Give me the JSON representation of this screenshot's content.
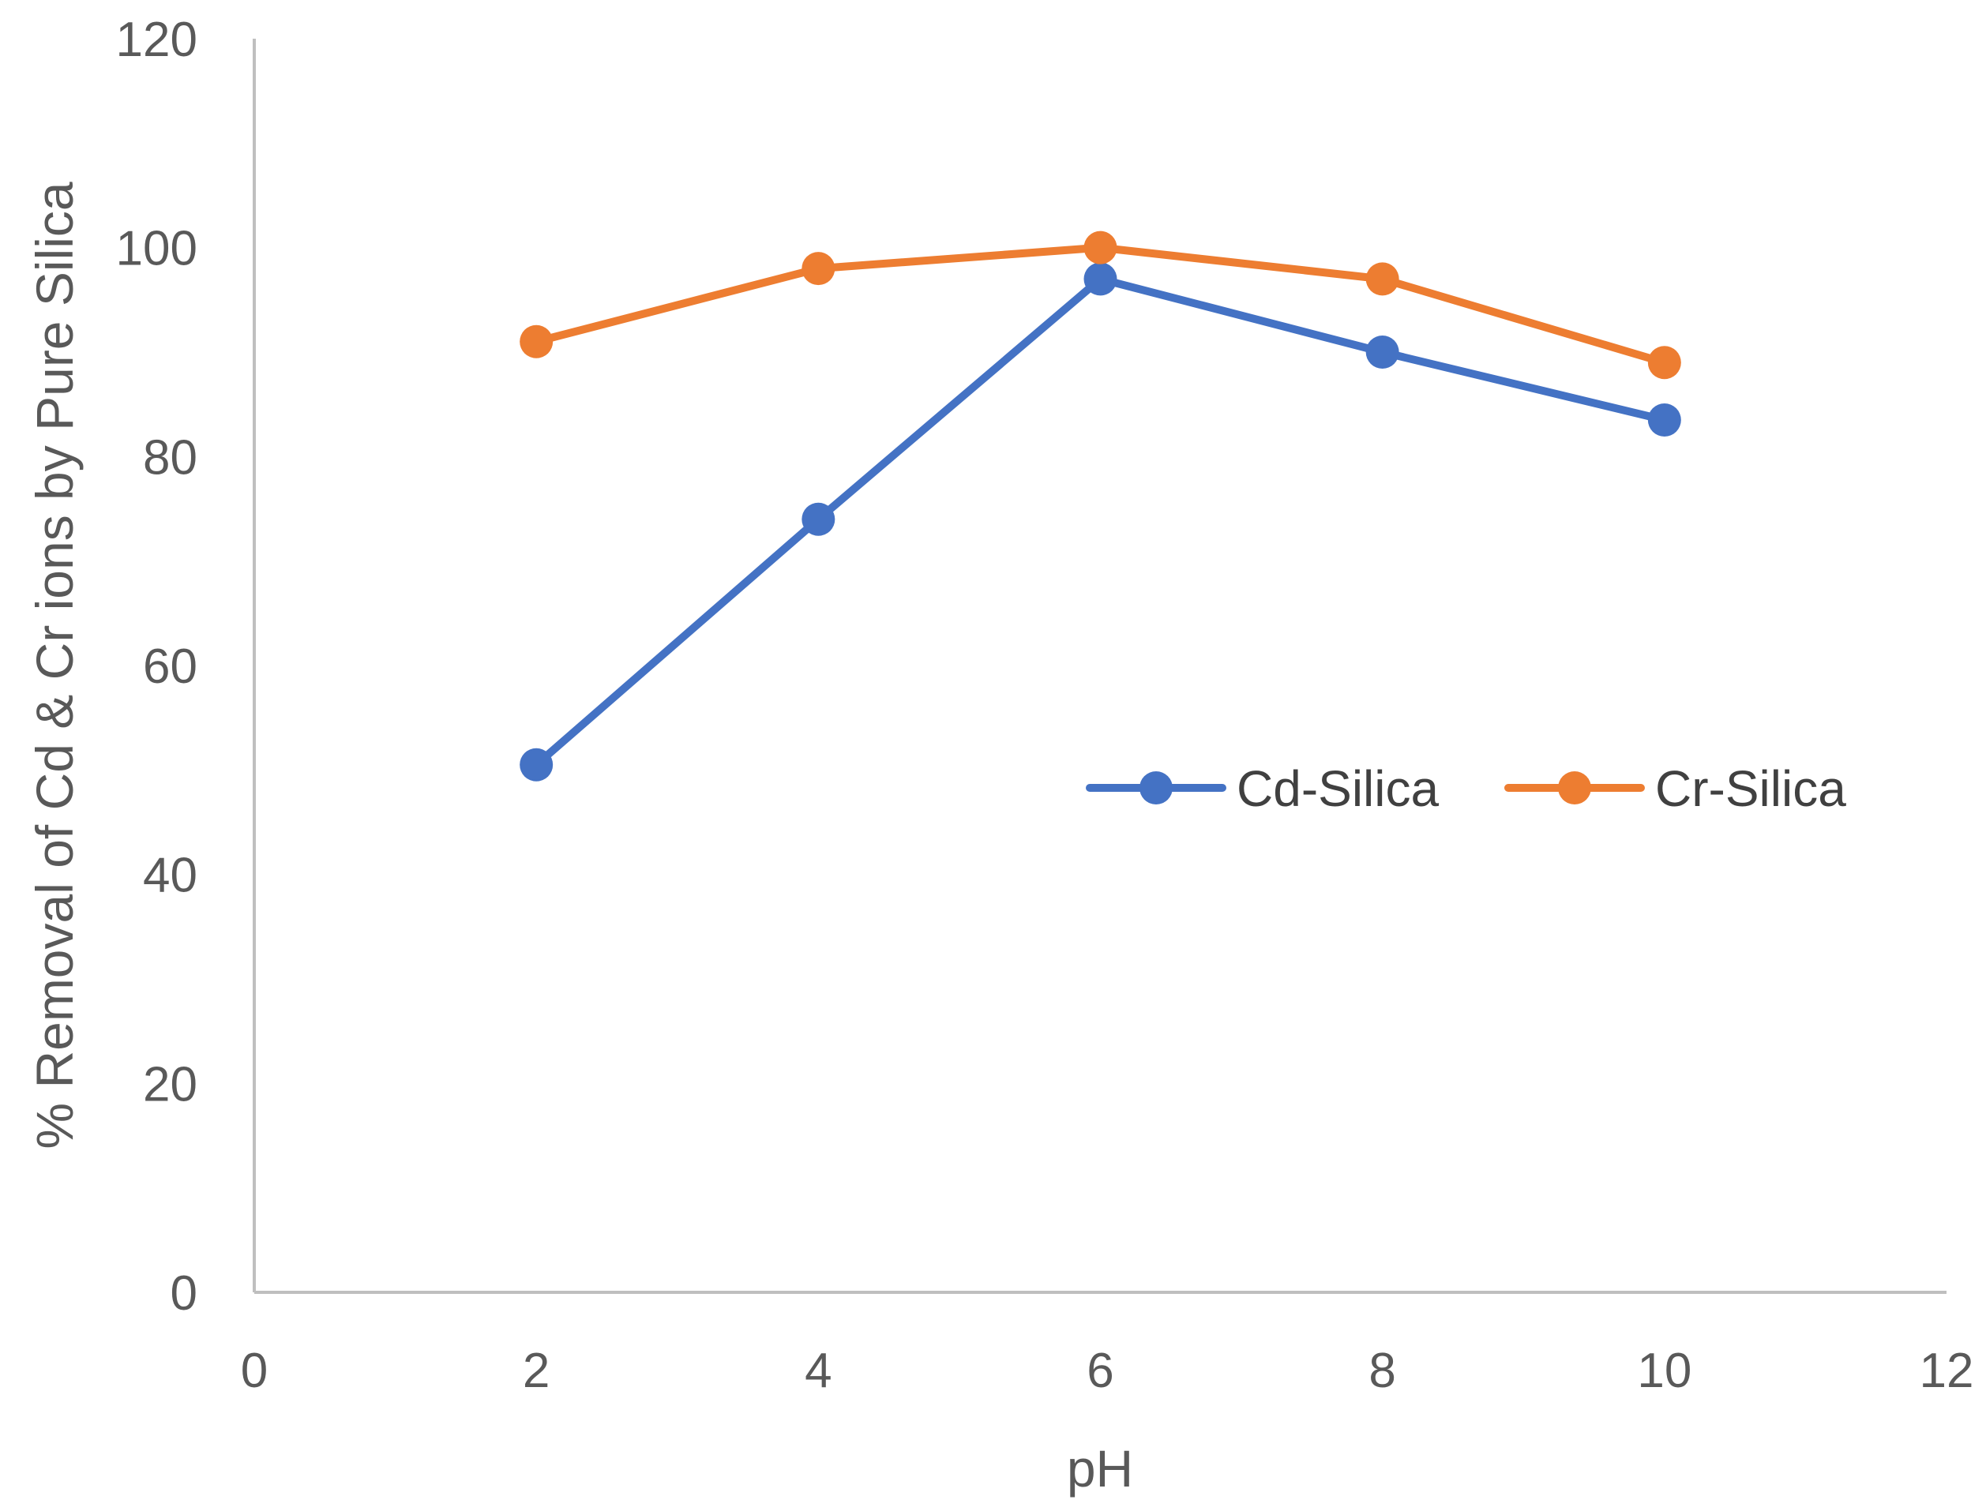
{
  "chart_data": {
    "type": "line",
    "title": "",
    "xlabel": "pH",
    "ylabel": "% Removal of Cd & Cr ions by Pure Silica",
    "xlim": [
      0,
      12
    ],
    "ylim": [
      0,
      120
    ],
    "x_ticks": [
      "0",
      "2",
      "4",
      "6",
      "8",
      "10",
      "12"
    ],
    "y_ticks": [
      "0",
      "20",
      "40",
      "60",
      "80",
      "100",
      "120"
    ],
    "grid": false,
    "legend_position": "center-right",
    "x": [
      2,
      4,
      6,
      8,
      10
    ],
    "series": [
      {
        "name": "Cd-Silica",
        "color": "#4472C4",
        "values": [
          50.5,
          74,
          97,
          90,
          83.5
        ]
      },
      {
        "name": "Cr-Silica",
        "color": "#ED7D31",
        "values": [
          91,
          98,
          100,
          97,
          89
        ]
      }
    ]
  }
}
